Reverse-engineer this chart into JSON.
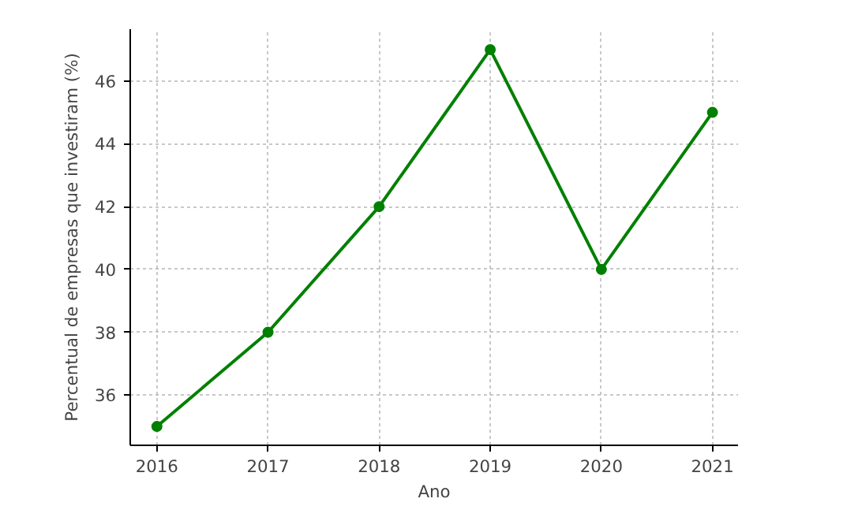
{
  "chart_data": {
    "type": "line",
    "xlabel": "Ano",
    "ylabel": "Percentual de empresas que investiram (%)",
    "x": [
      2016,
      2017,
      2018,
      2019,
      2020,
      2021
    ],
    "series": [
      {
        "color": "#008000",
        "values": [
          35,
          38,
          42,
          47,
          40,
          45
        ]
      }
    ],
    "xlim": [
      2015.76,
      2021.23
    ],
    "xticks": [
      2016,
      2017,
      2018,
      2019,
      2020,
      2021
    ],
    "ylim": [
      34.4,
      47.65
    ],
    "yticks": [
      36,
      38,
      40,
      42,
      44,
      46
    ],
    "grid": true,
    "marker": "circle",
    "line_style": "solid"
  }
}
